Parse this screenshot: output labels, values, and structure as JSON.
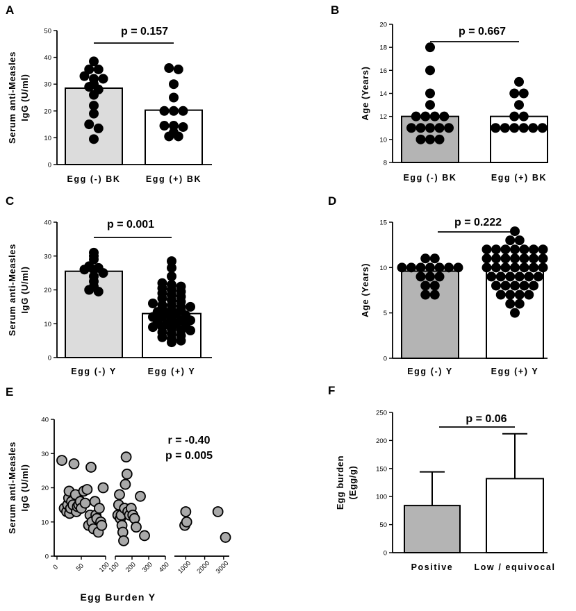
{
  "colors": {
    "light_gray": "#dcdcdc",
    "mid_gray": "#b4b4b4",
    "dot_black": "#000000",
    "dot_gray": "#a9a9a9"
  },
  "chart_data": [
    {
      "panel": "A",
      "type": "bar_scatter",
      "ylabel_lines": [
        "Serum anti-Measles",
        "IgG (U/ml)"
      ],
      "ylim": [
        0,
        50
      ],
      "yticks": [
        0,
        10,
        20,
        30,
        40,
        50
      ],
      "pvalue": "p = 0.157",
      "groups": [
        {
          "name": "Egg (-) BK",
          "mean": 28.5,
          "fill": "#dcdcdc",
          "points": [
            38.5,
            35.5,
            35.5,
            33,
            32,
            32,
            30,
            29,
            28,
            26,
            22,
            19,
            15,
            13.5,
            9.5
          ]
        },
        {
          "name": "Egg (+) BK",
          "mean": 20.3,
          "fill": "#ffffff",
          "points": [
            36,
            35.5,
            30,
            25,
            20,
            20,
            20,
            14.5,
            14.5,
            14,
            12,
            10.5,
            10.5
          ]
        }
      ]
    },
    {
      "panel": "B",
      "type": "bar_scatter",
      "ylabel_lines": [
        "Age (Years)"
      ],
      "ylim": [
        8,
        20
      ],
      "yticks": [
        8,
        10,
        12,
        14,
        16,
        18,
        20
      ],
      "pvalue": "p = 0.667",
      "groups": [
        {
          "name": "Egg (-) BK",
          "mean": 12.0,
          "fill": "#b4b4b4",
          "points": [
            18,
            16,
            14,
            13,
            12,
            12,
            12,
            12,
            11,
            11,
            11,
            11,
            11,
            10,
            10,
            10
          ]
        },
        {
          "name": "Egg (+) BK",
          "mean": 12.0,
          "fill": "#ffffff",
          "points": [
            15,
            14,
            14,
            13,
            12,
            12,
            11,
            11,
            11,
            11,
            11,
            11
          ]
        }
      ]
    },
    {
      "panel": "C",
      "type": "bar_scatter",
      "ylabel_lines": [
        "Serum anti-Measles",
        "IgG (U/ml)"
      ],
      "ylim": [
        0,
        40
      ],
      "yticks": [
        0,
        10,
        20,
        30,
        40
      ],
      "pvalue": "p = 0.001",
      "groups": [
        {
          "name": "Egg (-) Y",
          "mean": 25.5,
          "fill": "#dcdcdc",
          "points": [
            31,
            30,
            29,
            27,
            26.5,
            26,
            26,
            25,
            24,
            22.5,
            21,
            20,
            19.5
          ]
        },
        {
          "name": "Egg (+) Y",
          "mean": 13.0,
          "fill": "#ffffff",
          "points": [
            28.5,
            26.5,
            24,
            22,
            21.5,
            21,
            20.5,
            20,
            19.5,
            19,
            18.5,
            18,
            17.5,
            17,
            16.5,
            16,
            15.5,
            15.5,
            15,
            15,
            14.5,
            14,
            14,
            13.5,
            13,
            13,
            12.5,
            12,
            12,
            11.5,
            11,
            11,
            10.5,
            10,
            10,
            9.5,
            9,
            9,
            8.5,
            8,
            8,
            7.5,
            7,
            6.5,
            6,
            5.5,
            5,
            4.5
          ]
        }
      ]
    },
    {
      "panel": "D",
      "type": "bar_scatter",
      "ylabel_lines": [
        "Age (Years)"
      ],
      "ylim": [
        0,
        15
      ],
      "yticks": [
        0,
        5,
        10,
        15
      ],
      "pvalue": "p = 0.222",
      "groups": [
        {
          "name": "Egg (-) Y",
          "mean": 9.6,
          "fill": "#b4b4b4",
          "points": [
            11,
            11,
            10,
            10,
            10,
            10,
            10,
            10,
            10,
            9,
            9,
            9,
            8,
            8,
            7,
            7
          ]
        },
        {
          "name": "Egg (+) Y",
          "mean": 10.1,
          "fill": "#ffffff",
          "points": [
            14,
            13,
            13,
            12,
            12,
            12,
            12,
            12,
            12,
            12,
            11,
            11,
            11,
            11,
            11,
            11,
            11,
            10,
            10,
            10,
            10,
            10,
            10,
            10,
            9,
            9,
            9,
            9,
            9,
            9,
            8,
            8,
            8,
            8,
            8,
            7,
            7,
            7,
            7,
            6,
            6,
            5
          ]
        }
      ]
    },
    {
      "panel": "E",
      "type": "scatter",
      "ylabel_lines": [
        "Serum anti-Measles",
        "IgG (U/ml)"
      ],
      "xlabel": "Egg Burden Y",
      "ylim": [
        0,
        40
      ],
      "yticks": [
        0,
        10,
        20,
        30,
        40
      ],
      "annotation_lines": [
        "r = -0.40",
        "p = 0.005"
      ],
      "x_segments": [
        {
          "range": [
            0,
            100
          ],
          "ticks": [
            "0",
            "50",
            "100"
          ]
        },
        {
          "range": [
            100,
            400
          ],
          "ticks": [
            "100",
            "200",
            "300",
            "400"
          ]
        },
        {
          "range": [
            400,
            3300
          ],
          "ticks": [
            "1000",
            "2000",
            "3000"
          ]
        }
      ],
      "points": [
        [
          10,
          28
        ],
        [
          15,
          14
        ],
        [
          20,
          13
        ],
        [
          22,
          15
        ],
        [
          24,
          17
        ],
        [
          25,
          19
        ],
        [
          26,
          12.5
        ],
        [
          28,
          14
        ],
        [
          30,
          16
        ],
        [
          33,
          15
        ],
        [
          35,
          27
        ],
        [
          38,
          18
        ],
        [
          40,
          13
        ],
        [
          42,
          14.5
        ],
        [
          45,
          15
        ],
        [
          48,
          16
        ],
        [
          50,
          14
        ],
        [
          55,
          19
        ],
        [
          58,
          15.5
        ],
        [
          62,
          19.5
        ],
        [
          65,
          9
        ],
        [
          68,
          12
        ],
        [
          70,
          26
        ],
        [
          72,
          10
        ],
        [
          75,
          8
        ],
        [
          78,
          16
        ],
        [
          80,
          12
        ],
        [
          82,
          11
        ],
        [
          85,
          7
        ],
        [
          87,
          14
        ],
        [
          90,
          10
        ],
        [
          92,
          9
        ],
        [
          95,
          20
        ],
        [
          115,
          12
        ],
        [
          120,
          15
        ],
        [
          125,
          18
        ],
        [
          130,
          11
        ],
        [
          135,
          12
        ],
        [
          140,
          9
        ],
        [
          145,
          7
        ],
        [
          150,
          4.5
        ],
        [
          155,
          14
        ],
        [
          160,
          21
        ],
        [
          165,
          29
        ],
        [
          170,
          24
        ],
        [
          175,
          13
        ],
        [
          185,
          12
        ],
        [
          195,
          14
        ],
        [
          205,
          12
        ],
        [
          215,
          11
        ],
        [
          225,
          8.5
        ],
        [
          250,
          17.5
        ],
        [
          275,
          6
        ],
        [
          950,
          9
        ],
        [
          1000,
          13
        ],
        [
          1050,
          10
        ],
        [
          2700,
          13
        ],
        [
          3100,
          5.5
        ]
      ]
    },
    {
      "panel": "F",
      "type": "bar",
      "ylabel_lines": [
        "Egg burden",
        "(Egg/g)"
      ],
      "ylim": [
        0,
        250
      ],
      "yticks": [
        0,
        50,
        100,
        150,
        200,
        250
      ],
      "pvalue": "p = 0.06",
      "categories": [
        "Positive",
        "Low / equivocal"
      ],
      "values": [
        84,
        132
      ],
      "errors": [
        60,
        80
      ],
      "fills": [
        "#b4b4b4",
        "#ffffff"
      ]
    }
  ]
}
